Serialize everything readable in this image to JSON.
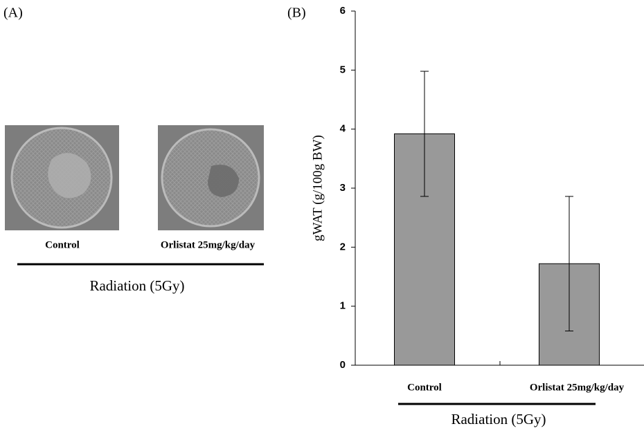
{
  "panel_a": {
    "label": "(A)",
    "labels": [
      "Control",
      "Orlistat 25mg/kg/day"
    ],
    "group_label": "Radiation (5Gy)"
  },
  "chart_data": {
    "type": "bar",
    "panel_label": "(B)",
    "y_label": "gWAT (g/100g BW)",
    "categories": [
      "Control",
      "Orlistat 25mg/kg/day"
    ],
    "values": [
      3.92,
      1.72
    ],
    "errors": [
      1.06,
      1.14
    ],
    "color": "#999999",
    "ylim": [
      0,
      6
    ],
    "yticks": [
      0,
      1,
      2,
      3,
      4,
      5,
      6
    ],
    "grid": false,
    "group_label": "Radiation (5Gy)"
  }
}
